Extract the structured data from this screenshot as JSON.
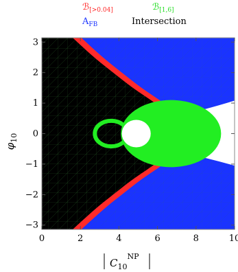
{
  "chart_data": {
    "type": "region",
    "xlabel_base": "C",
    "xlabel_sub": "10",
    "xlabel_sup": "NP",
    "ylabel_base": "φ",
    "ylabel_sub": "10",
    "xlim": [
      0,
      10
    ],
    "ylim": [
      -3.14159,
      3.14159
    ],
    "x_ticks": [
      0,
      2,
      4,
      6,
      8,
      10
    ],
    "x_tick_labels": [
      "0",
      "2",
      "4",
      "6",
      "8",
      "10"
    ],
    "y_ticks": [
      -3,
      -2,
      -1,
      0,
      1,
      2,
      3
    ],
    "y_tick_labels": [
      "−3",
      "−2",
      "−1",
      "0",
      "1",
      "2",
      "3"
    ],
    "legend": [
      {
        "name_base": "ℬ",
        "name_sub": "[>0.04]",
        "color": "#ff2a2a"
      },
      {
        "name_base": "ℬ",
        "name_sub": "[1,6]",
        "color": "#22dd22"
      },
      {
        "name_base": "A",
        "name_sub": "FB",
        "color": "#1a33ff"
      },
      {
        "name_base": "Intersection",
        "name_sub": "",
        "color": "#000000"
      }
    ],
    "colors": {
      "bg": "#000000",
      "red": "#ff2a2a",
      "blue": "#1a33ff",
      "green": "#22ee22",
      "white": "#ffffff",
      "grid": "#2f7a2f"
    },
    "regions": {
      "inner_boundary_x": [
        [
          -3.14159,
          1.6
        ],
        [
          -2.5,
          2.7
        ],
        [
          -2.0,
          3.7
        ],
        [
          -1.5,
          4.7
        ],
        [
          -1.0,
          5.9
        ],
        [
          -0.5,
          6.9
        ],
        [
          0,
          7.2
        ],
        [
          0.5,
          6.9
        ],
        [
          1.0,
          5.9
        ],
        [
          1.5,
          4.7
        ],
        [
          2.0,
          3.7
        ],
        [
          2.5,
          2.7
        ],
        [
          3.14159,
          1.6
        ]
      ],
      "red_band_width": 0.45,
      "white_wedge": [
        [
          10,
          1.08
        ],
        [
          8.3,
          0.75
        ],
        [
          6.8,
          0.55
        ],
        [
          6.8,
          -0.55
        ],
        [
          8.3,
          -0.75
        ],
        [
          10,
          -1.05
        ]
      ],
      "green_blob_center": [
        6.7,
        0.0
      ],
      "green_blob_radii": [
        2.6,
        1.1
      ],
      "green_ring_center": [
        3.6,
        0.0
      ],
      "green_ring_radii": [
        0.85,
        0.42
      ],
      "white_hole_center": [
        4.9,
        0.0
      ],
      "white_hole_radii": [
        0.75,
        0.45
      ]
    }
  }
}
